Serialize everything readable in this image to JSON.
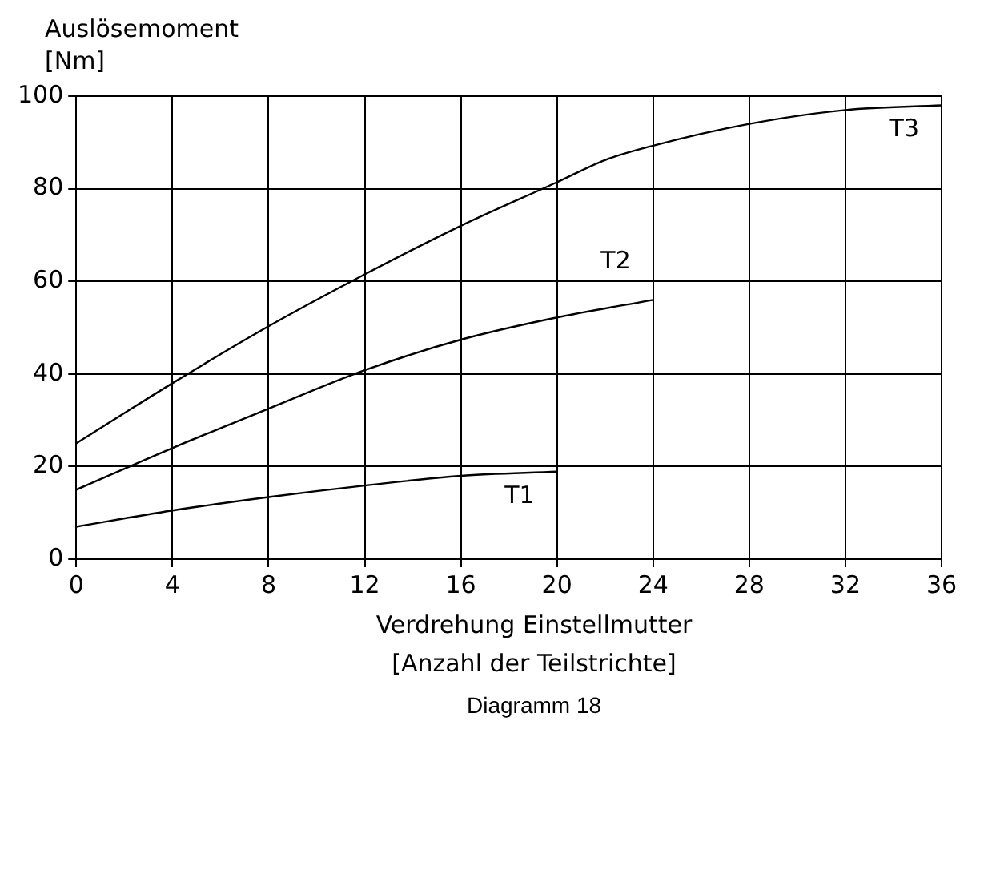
{
  "chart_data": {
    "type": "line",
    "ylabel": "Auslösemoment\n[Nm]",
    "xlabel": "Verdrehung Einstellmutter\n[Anzahl der Teilstrichte]",
    "annotations": [
      "Diagramm 18"
    ],
    "series": [
      {
        "name": "T1",
        "color": "#000000",
        "x": [
          0,
          4,
          8,
          12,
          16,
          20
        ],
        "values": [
          7,
          10.5,
          13.4,
          15.9,
          18,
          18.9
        ]
      },
      {
        "name": "T2",
        "color": "#000000",
        "x": [
          0,
          4,
          8,
          12,
          16,
          20,
          24
        ],
        "values": [
          15,
          24,
          32.5,
          40.8,
          47.4,
          52.2,
          56
        ]
      },
      {
        "name": "T3",
        "color": "#000000",
        "x": [
          0,
          4,
          8,
          12,
          16,
          20,
          22,
          24,
          28,
          32,
          36
        ],
        "values": [
          25,
          38,
          50.3,
          61.5,
          72,
          81.4,
          86.2,
          89.3,
          94,
          97,
          98
        ]
      }
    ],
    "xlim": [
      0,
      36
    ],
    "xticks": [
      0,
      4,
      8,
      12,
      16,
      20,
      24,
      28,
      32,
      36
    ],
    "ylim": [
      0,
      100
    ],
    "yticks": [
      0,
      20,
      40,
      60,
      80,
      100
    ],
    "grid": true,
    "legend": false,
    "marker": "none",
    "line_style": "solid"
  }
}
